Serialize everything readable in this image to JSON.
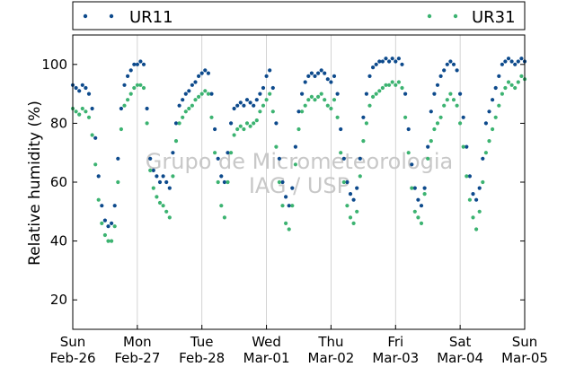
{
  "chart_data": {
    "type": "scatter",
    "title": "",
    "xlabel": "",
    "ylabel": "Relative humidity (%)",
    "ylim": [
      10,
      110
    ],
    "xlim": [
      0,
      7
    ],
    "grid": "vertical",
    "legend_placement": "top, outside plot",
    "watermark": [
      "Grupo de Micrometeorologia",
      "IAG / USP"
    ],
    "x_ticks": [
      {
        "x": 0,
        "day": "Sun",
        "date": "Feb-26"
      },
      {
        "x": 1,
        "day": "Mon",
        "date": "Feb-27"
      },
      {
        "x": 2,
        "day": "Tue",
        "date": "Feb-28"
      },
      {
        "x": 3,
        "day": "Wed",
        "date": "Mar-01"
      },
      {
        "x": 4,
        "day": "Thu",
        "date": "Mar-02"
      },
      {
        "x": 5,
        "day": "Fri",
        "date": "Mar-03"
      },
      {
        "x": 6,
        "day": "Sat",
        "date": "Mar-04"
      },
      {
        "x": 7,
        "day": "Sun",
        "date": "Mar-05"
      }
    ],
    "y_ticks": [
      20,
      40,
      60,
      80,
      100
    ],
    "series": [
      {
        "name": "UR11",
        "color": "#0d4a8c",
        "points": [
          [
            0.0,
            93
          ],
          [
            0.05,
            92
          ],
          [
            0.1,
            91
          ],
          [
            0.15,
            93
          ],
          [
            0.2,
            92
          ],
          [
            0.25,
            90
          ],
          [
            0.3,
            85
          ],
          [
            0.35,
            75
          ],
          [
            0.4,
            62
          ],
          [
            0.45,
            52
          ],
          [
            0.5,
            47
          ],
          [
            0.55,
            45
          ],
          [
            0.6,
            46
          ],
          [
            0.65,
            52
          ],
          [
            0.7,
            68
          ],
          [
            0.75,
            85
          ],
          [
            0.8,
            93
          ],
          [
            0.85,
            96
          ],
          [
            0.9,
            98
          ],
          [
            0.95,
            100
          ],
          [
            1.0,
            100
          ],
          [
            1.05,
            101
          ],
          [
            1.1,
            100
          ],
          [
            1.15,
            85
          ],
          [
            1.2,
            68
          ],
          [
            1.25,
            64
          ],
          [
            1.3,
            62
          ],
          [
            1.35,
            60
          ],
          [
            1.4,
            62
          ],
          [
            1.45,
            60
          ],
          [
            1.5,
            58
          ],
          [
            1.55,
            70
          ],
          [
            1.6,
            80
          ],
          [
            1.65,
            86
          ],
          [
            1.7,
            88
          ],
          [
            1.75,
            90
          ],
          [
            1.8,
            91
          ],
          [
            1.85,
            93
          ],
          [
            1.9,
            94
          ],
          [
            1.95,
            96
          ],
          [
            2.0,
            97
          ],
          [
            2.05,
            98
          ],
          [
            2.1,
            97
          ],
          [
            2.15,
            90
          ],
          [
            2.2,
            78
          ],
          [
            2.25,
            68
          ],
          [
            2.3,
            62
          ],
          [
            2.35,
            60
          ],
          [
            2.4,
            70
          ],
          [
            2.45,
            80
          ],
          [
            2.5,
            85
          ],
          [
            2.55,
            86
          ],
          [
            2.6,
            87
          ],
          [
            2.65,
            86
          ],
          [
            2.7,
            88
          ],
          [
            2.75,
            87
          ],
          [
            2.8,
            86
          ],
          [
            2.85,
            88
          ],
          [
            2.9,
            90
          ],
          [
            2.95,
            92
          ],
          [
            3.0,
            96
          ],
          [
            3.05,
            98
          ],
          [
            3.1,
            92
          ],
          [
            3.15,
            80
          ],
          [
            3.2,
            68
          ],
          [
            3.25,
            60
          ],
          [
            3.3,
            55
          ],
          [
            3.35,
            52
          ],
          [
            3.4,
            58
          ],
          [
            3.45,
            72
          ],
          [
            3.5,
            84
          ],
          [
            3.55,
            90
          ],
          [
            3.6,
            94
          ],
          [
            3.65,
            96
          ],
          [
            3.7,
            97
          ],
          [
            3.75,
            96
          ],
          [
            3.8,
            97
          ],
          [
            3.85,
            98
          ],
          [
            3.9,
            97
          ],
          [
            3.95,
            95
          ],
          [
            4.0,
            94
          ],
          [
            4.05,
            96
          ],
          [
            4.1,
            90
          ],
          [
            4.15,
            78
          ],
          [
            4.2,
            68
          ],
          [
            4.25,
            60
          ],
          [
            4.3,
            56
          ],
          [
            4.35,
            54
          ],
          [
            4.4,
            58
          ],
          [
            4.45,
            68
          ],
          [
            4.5,
            82
          ],
          [
            4.55,
            90
          ],
          [
            4.6,
            96
          ],
          [
            4.65,
            99
          ],
          [
            4.7,
            100
          ],
          [
            4.75,
            101
          ],
          [
            4.8,
            101
          ],
          [
            4.85,
            102
          ],
          [
            4.9,
            101
          ],
          [
            4.95,
            102
          ],
          [
            5.0,
            101
          ],
          [
            5.05,
            102
          ],
          [
            5.1,
            100
          ],
          [
            5.15,
            90
          ],
          [
            5.2,
            78
          ],
          [
            5.25,
            66
          ],
          [
            5.3,
            58
          ],
          [
            5.35,
            54
          ],
          [
            5.4,
            52
          ],
          [
            5.45,
            58
          ],
          [
            5.5,
            72
          ],
          [
            5.55,
            84
          ],
          [
            5.6,
            90
          ],
          [
            5.65,
            93
          ],
          [
            5.7,
            96
          ],
          [
            5.75,
            98
          ],
          [
            5.8,
            100
          ],
          [
            5.85,
            101
          ],
          [
            5.9,
            100
          ],
          [
            5.95,
            98
          ],
          [
            6.0,
            90
          ],
          [
            6.05,
            82
          ],
          [
            6.1,
            72
          ],
          [
            6.15,
            62
          ],
          [
            6.2,
            56
          ],
          [
            6.25,
            54
          ],
          [
            6.3,
            58
          ],
          [
            6.35,
            68
          ],
          [
            6.4,
            80
          ],
          [
            6.45,
            84
          ],
          [
            6.5,
            88
          ],
          [
            6.55,
            92
          ],
          [
            6.6,
            96
          ],
          [
            6.65,
            100
          ],
          [
            6.7,
            101
          ],
          [
            6.75,
            102
          ],
          [
            6.8,
            101
          ],
          [
            6.85,
            100
          ],
          [
            6.9,
            101
          ],
          [
            6.95,
            102
          ],
          [
            7.0,
            101
          ]
        ]
      },
      {
        "name": "UR31",
        "color": "#3cb371",
        "points": [
          [
            0.0,
            85
          ],
          [
            0.05,
            84
          ],
          [
            0.1,
            83
          ],
          [
            0.15,
            85
          ],
          [
            0.2,
            84
          ],
          [
            0.25,
            82
          ],
          [
            0.3,
            76
          ],
          [
            0.35,
            66
          ],
          [
            0.4,
            54
          ],
          [
            0.45,
            46
          ],
          [
            0.5,
            42
          ],
          [
            0.55,
            40
          ],
          [
            0.6,
            40
          ],
          [
            0.65,
            45
          ],
          [
            0.7,
            60
          ],
          [
            0.75,
            78
          ],
          [
            0.8,
            86
          ],
          [
            0.85,
            88
          ],
          [
            0.9,
            90
          ],
          [
            0.95,
            92
          ],
          [
            1.0,
            93
          ],
          [
            1.05,
            93
          ],
          [
            1.1,
            92
          ],
          [
            1.15,
            80
          ],
          [
            1.2,
            64
          ],
          [
            1.25,
            58
          ],
          [
            1.3,
            55
          ],
          [
            1.35,
            53
          ],
          [
            1.4,
            52
          ],
          [
            1.45,
            50
          ],
          [
            1.5,
            48
          ],
          [
            1.55,
            62
          ],
          [
            1.6,
            74
          ],
          [
            1.65,
            80
          ],
          [
            1.7,
            82
          ],
          [
            1.75,
            84
          ],
          [
            1.8,
            85
          ],
          [
            1.85,
            86
          ],
          [
            1.9,
            88
          ],
          [
            1.95,
            89
          ],
          [
            2.0,
            90
          ],
          [
            2.05,
            91
          ],
          [
            2.1,
            90
          ],
          [
            2.15,
            82
          ],
          [
            2.2,
            70
          ],
          [
            2.25,
            60
          ],
          [
            2.3,
            52
          ],
          [
            2.35,
            48
          ],
          [
            2.4,
            60
          ],
          [
            2.45,
            70
          ],
          [
            2.5,
            76
          ],
          [
            2.55,
            78
          ],
          [
            2.6,
            79
          ],
          [
            2.65,
            78
          ],
          [
            2.7,
            80
          ],
          [
            2.75,
            79
          ],
          [
            2.8,
            80
          ],
          [
            2.85,
            81
          ],
          [
            2.9,
            84
          ],
          [
            2.95,
            86
          ],
          [
            3.0,
            88
          ],
          [
            3.05,
            90
          ],
          [
            3.1,
            84
          ],
          [
            3.15,
            72
          ],
          [
            3.2,
            60
          ],
          [
            3.25,
            52
          ],
          [
            3.3,
            46
          ],
          [
            3.35,
            44
          ],
          [
            3.4,
            52
          ],
          [
            3.45,
            66
          ],
          [
            3.5,
            78
          ],
          [
            3.55,
            84
          ],
          [
            3.6,
            86
          ],
          [
            3.65,
            88
          ],
          [
            3.7,
            89
          ],
          [
            3.75,
            88
          ],
          [
            3.8,
            89
          ],
          [
            3.85,
            90
          ],
          [
            3.9,
            88
          ],
          [
            3.95,
            86
          ],
          [
            4.0,
            85
          ],
          [
            4.05,
            88
          ],
          [
            4.1,
            82
          ],
          [
            4.15,
            70
          ],
          [
            4.2,
            60
          ],
          [
            4.25,
            52
          ],
          [
            4.3,
            48
          ],
          [
            4.35,
            46
          ],
          [
            4.4,
            50
          ],
          [
            4.45,
            62
          ],
          [
            4.5,
            74
          ],
          [
            4.55,
            80
          ],
          [
            4.6,
            86
          ],
          [
            4.65,
            89
          ],
          [
            4.7,
            90
          ],
          [
            4.75,
            91
          ],
          [
            4.8,
            92
          ],
          [
            4.85,
            93
          ],
          [
            4.9,
            93
          ],
          [
            4.95,
            94
          ],
          [
            5.0,
            93
          ],
          [
            5.05,
            94
          ],
          [
            5.1,
            92
          ],
          [
            5.15,
            82
          ],
          [
            5.2,
            70
          ],
          [
            5.25,
            58
          ],
          [
            5.3,
            50
          ],
          [
            5.35,
            48
          ],
          [
            5.4,
            46
          ],
          [
            5.45,
            56
          ],
          [
            5.5,
            68
          ],
          [
            5.55,
            74
          ],
          [
            5.6,
            78
          ],
          [
            5.65,
            80
          ],
          [
            5.7,
            82
          ],
          [
            5.75,
            86
          ],
          [
            5.8,
            88
          ],
          [
            5.85,
            90
          ],
          [
            5.9,
            88
          ],
          [
            5.95,
            86
          ],
          [
            6.0,
            80
          ],
          [
            6.05,
            72
          ],
          [
            6.1,
            62
          ],
          [
            6.15,
            54
          ],
          [
            6.2,
            48
          ],
          [
            6.25,
            44
          ],
          [
            6.3,
            50
          ],
          [
            6.35,
            60
          ],
          [
            6.4,
            70
          ],
          [
            6.45,
            74
          ],
          [
            6.5,
            78
          ],
          [
            6.55,
            82
          ],
          [
            6.6,
            86
          ],
          [
            6.65,
            90
          ],
          [
            6.7,
            92
          ],
          [
            6.75,
            94
          ],
          [
            6.8,
            93
          ],
          [
            6.85,
            92
          ],
          [
            6.9,
            94
          ],
          [
            6.95,
            96
          ],
          [
            7.0,
            95
          ]
        ]
      }
    ]
  }
}
